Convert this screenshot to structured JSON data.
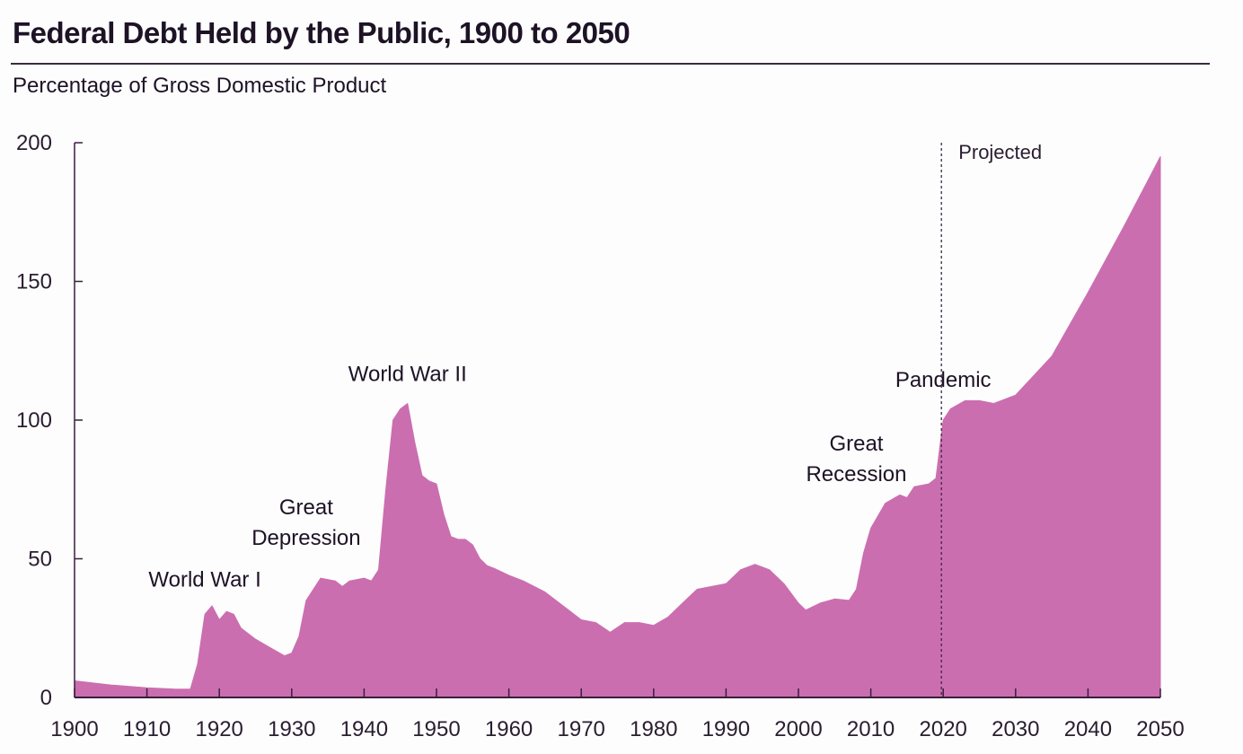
{
  "chart_data": {
    "type": "area",
    "title": "Federal Debt Held by the Public, 1900 to 2050",
    "subtitle": "Percentage of Gross Domestic Product",
    "xlabel": "",
    "ylabel": "Percentage of Gross Domestic Product",
    "xlim": [
      1900,
      2050
    ],
    "ylim": [
      0,
      200
    ],
    "x_ticks": [
      "1900",
      "1910",
      "1920",
      "1930",
      "1940",
      "1950",
      "1960",
      "1970",
      "1980",
      "1990",
      "2000",
      "2010",
      "2020",
      "2030",
      "2040",
      "2050"
    ],
    "y_ticks": [
      "0",
      "50",
      "100",
      "150",
      "200"
    ],
    "grid": false,
    "fill_color": "#CB6EB0",
    "axis_color": "#3a1d3f",
    "projection_start": 2020,
    "projection_label": "Projected",
    "annotations": [
      {
        "label": [
          "World War I"
        ],
        "x": 1918,
        "y": 40
      },
      {
        "label": [
          "Great",
          "Depression"
        ],
        "x": 1932,
        "y": 55
      },
      {
        "label": [
          "World War II"
        ],
        "x": 1946,
        "y": 114
      },
      {
        "label": [
          "Great",
          "Recession"
        ],
        "x": 2008,
        "y": 78
      },
      {
        "label": [
          "Pandemic"
        ],
        "x": 2020,
        "y": 112
      }
    ],
    "series": [
      {
        "name": "Federal Debt Held by the Public",
        "x": [
          1900,
          1905,
          1910,
          1914,
          1916,
          1917,
          1918,
          1919,
          1920,
          1921,
          1922,
          1923,
          1925,
          1927,
          1929,
          1930,
          1931,
          1932,
          1934,
          1936,
          1937,
          1938,
          1940,
          1941,
          1942,
          1943,
          1944,
          1945,
          1946,
          1947,
          1948,
          1949,
          1950,
          1951,
          1952,
          1953,
          1954,
          1955,
          1956,
          1957,
          1958,
          1960,
          1962,
          1965,
          1968,
          1970,
          1972,
          1974,
          1976,
          1978,
          1980,
          1982,
          1984,
          1986,
          1988,
          1990,
          1992,
          1994,
          1996,
          1998,
          2000,
          2001,
          2003,
          2005,
          2007,
          2008,
          2009,
          2010,
          2012,
          2014,
          2015,
          2016,
          2018,
          2019,
          2020,
          2021,
          2023,
          2025,
          2027,
          2030,
          2035,
          2040,
          2045,
          2050
        ],
        "y": [
          6,
          4.5,
          3.5,
          3,
          3,
          12,
          30,
          33,
          28,
          31,
          30,
          25,
          21,
          18,
          15,
          16,
          22,
          35,
          43,
          42,
          40,
          42,
          43,
          42,
          46,
          75,
          100,
          104,
          106,
          92,
          80,
          78,
          77,
          66,
          58,
          57,
          57,
          55,
          50,
          47.5,
          46.5,
          44,
          42,
          38,
          32,
          28,
          27,
          23.5,
          27,
          27,
          26,
          29,
          34,
          39,
          40,
          41,
          46,
          48,
          46,
          41,
          34,
          31.5,
          34,
          35.5,
          35,
          39,
          52,
          61,
          70,
          73,
          72,
          76,
          77,
          79,
          100,
          104,
          107,
          107,
          106,
          109,
          123,
          146,
          170,
          195
        ]
      }
    ]
  }
}
